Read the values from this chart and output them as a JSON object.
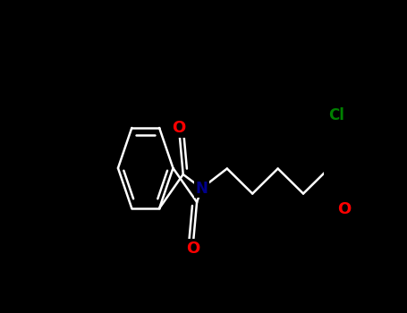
{
  "background_color": "#000000",
  "figsize": [
    4.55,
    3.5
  ],
  "dpi": 100,
  "bond_color": "#ffffff",
  "bond_width": 1.8,
  "atom_colors": {
    "N": "#00008b",
    "O": "#ff0000",
    "Cl": "#008000"
  }
}
